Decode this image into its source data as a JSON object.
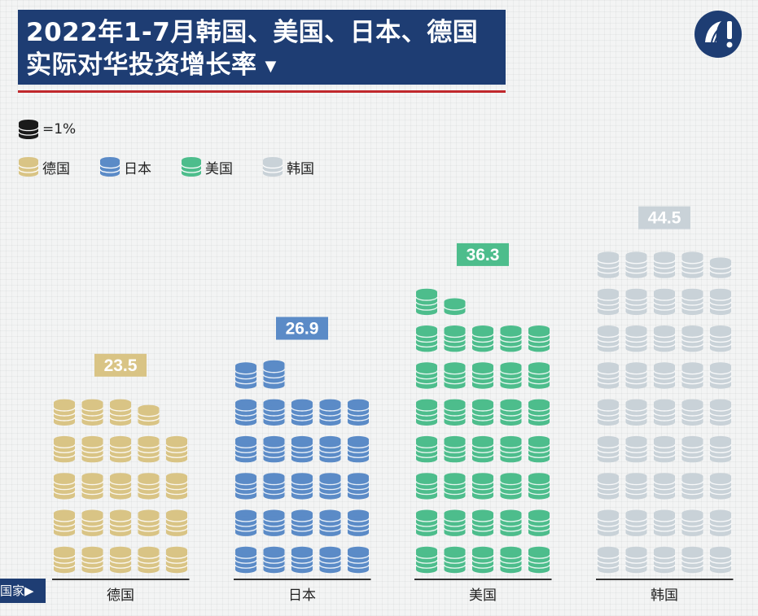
{
  "title": {
    "line1": "2022年1-7月韩国、美国、日本、德国",
    "line2": "实际对华投资增长率",
    "arrow": "▼"
  },
  "logo": {
    "icon": "news-agency-logo-icon",
    "color": "#1e3d73"
  },
  "legend": {
    "unit_label": "=1%",
    "unit_color": "#1a1a1a",
    "items": [
      {
        "label": "德国",
        "color": "#d9c485"
      },
      {
        "label": "日本",
        "color": "#5b8bc7"
      },
      {
        "label": "美国",
        "color": "#4dbd8c"
      },
      {
        "label": "韩国",
        "color": "#c9d2d8"
      }
    ]
  },
  "bottom_tag": "国家▶",
  "chart_data": {
    "type": "pictograph",
    "title": "2022年1-7月韩国、美国、日本、德国实际对华投资增长率",
    "unit": "1 coin stack = 1%",
    "categories": [
      "德国",
      "日本",
      "美国",
      "韩国"
    ],
    "values": [
      23.5,
      26.9,
      36.3,
      44.5
    ],
    "value_labels": [
      "23.5",
      "26.9",
      "36.3",
      "44.5"
    ],
    "colors": [
      "#d9c485",
      "#5b8bc7",
      "#4dbd8c",
      "#c9d2d8"
    ],
    "xlabel": "国家",
    "ylabel": ""
  }
}
